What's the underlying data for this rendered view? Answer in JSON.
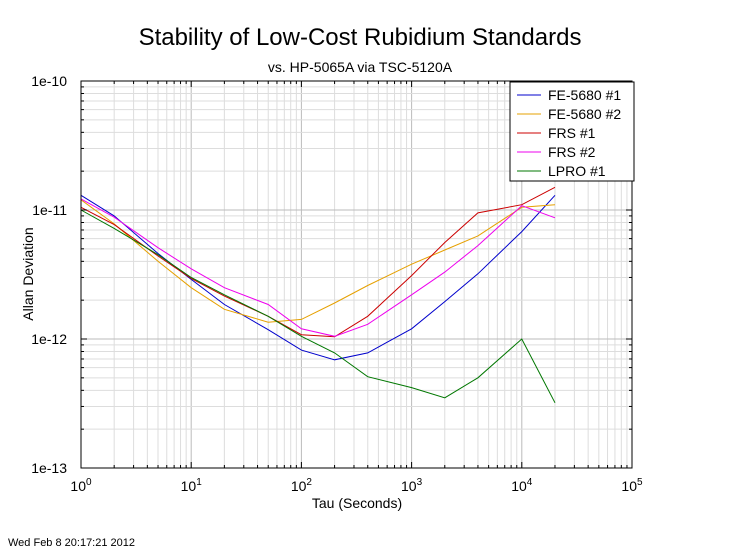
{
  "chart_data": {
    "type": "line",
    "title": "Stability of Low-Cost Rubidium Standards",
    "subtitle": "vs. HP-5065A via TSC-5120A",
    "xlabel": "Tau (Seconds)",
    "ylabel": "Allan Deviation",
    "x_scale": "log",
    "y_scale": "log",
    "xlim": [
      1,
      100000
    ],
    "ylim": [
      1e-13,
      1e-10
    ],
    "x_ticks": [
      1,
      10,
      100,
      1000,
      10000,
      100000
    ],
    "y_ticks": [
      1e-13,
      1e-12,
      1e-11,
      1e-10
    ],
    "y_tick_labels": [
      "1e-13",
      "1e-12",
      "1e-11",
      "1e-10"
    ],
    "grid": true,
    "legend_position": "top-right",
    "series": [
      {
        "name": "FE-5680 #1",
        "color": "#0000cc",
        "x": [
          1,
          2,
          5,
          10,
          20,
          50,
          100,
          200,
          400,
          1000,
          2000,
          4000,
          10000,
          20000
        ],
        "y": [
          1.3e-11,
          9e-12,
          4.6e-12,
          2.9e-12,
          1.85e-12,
          1.18e-12,
          8.2e-13,
          6.9e-13,
          7.8e-13,
          1.2e-12,
          1.95e-12,
          3.2e-12,
          6.8e-12,
          1.3e-11
        ]
      },
      {
        "name": "FE-5680 #2",
        "color": "#e6a000",
        "x": [
          1,
          2,
          5,
          10,
          20,
          50,
          100,
          200,
          400,
          1000,
          2000,
          4000,
          10000,
          20000
        ],
        "y": [
          1.2e-11,
          7.8e-12,
          4e-12,
          2.5e-12,
          1.7e-12,
          1.35e-12,
          1.42e-12,
          1.9e-12,
          2.6e-12,
          3.8e-12,
          4.9e-12,
          6.3e-12,
          1.05e-11,
          1.1e-11
        ]
      },
      {
        "name": "FRS #1",
        "color": "#cc0000",
        "x": [
          1,
          2,
          5,
          10,
          20,
          50,
          100,
          200,
          400,
          1000,
          2000,
          4000,
          10000,
          20000
        ],
        "y": [
          1.05e-11,
          7.7e-12,
          4.4e-12,
          2.95e-12,
          2.15e-12,
          1.5e-12,
          1.08e-12,
          1.04e-12,
          1.5e-12,
          3.1e-12,
          5.6e-12,
          9.5e-12,
          1.1e-11,
          1.5e-11
        ]
      },
      {
        "name": "FRS #2",
        "color": "#ee00ee",
        "x": [
          1,
          2,
          5,
          10,
          20,
          50,
          100,
          200,
          400,
          1000,
          2000,
          4000,
          10000,
          20000
        ],
        "y": [
          1.22e-11,
          8.8e-12,
          5.1e-12,
          3.5e-12,
          2.5e-12,
          1.85e-12,
          1.2e-12,
          1.05e-12,
          1.3e-12,
          2.2e-12,
          3.3e-12,
          5.3e-12,
          1.08e-11,
          8.7e-12
        ]
      },
      {
        "name": "LPRO #1",
        "color": "#007700",
        "x": [
          1,
          2,
          5,
          10,
          20,
          50,
          100,
          200,
          400,
          1000,
          2000,
          4000,
          10000,
          20000
        ],
        "y": [
          1e-11,
          7.2e-12,
          4.5e-12,
          3e-12,
          2.2e-12,
          1.5e-12,
          1.05e-12,
          7.8e-13,
          5.1e-13,
          4.2e-13,
          3.5e-13,
          5e-13,
          1e-12,
          3.2e-13
        ]
      }
    ]
  },
  "footer": {
    "timestamp": "Wed Feb  8 20:17:21 2012"
  }
}
